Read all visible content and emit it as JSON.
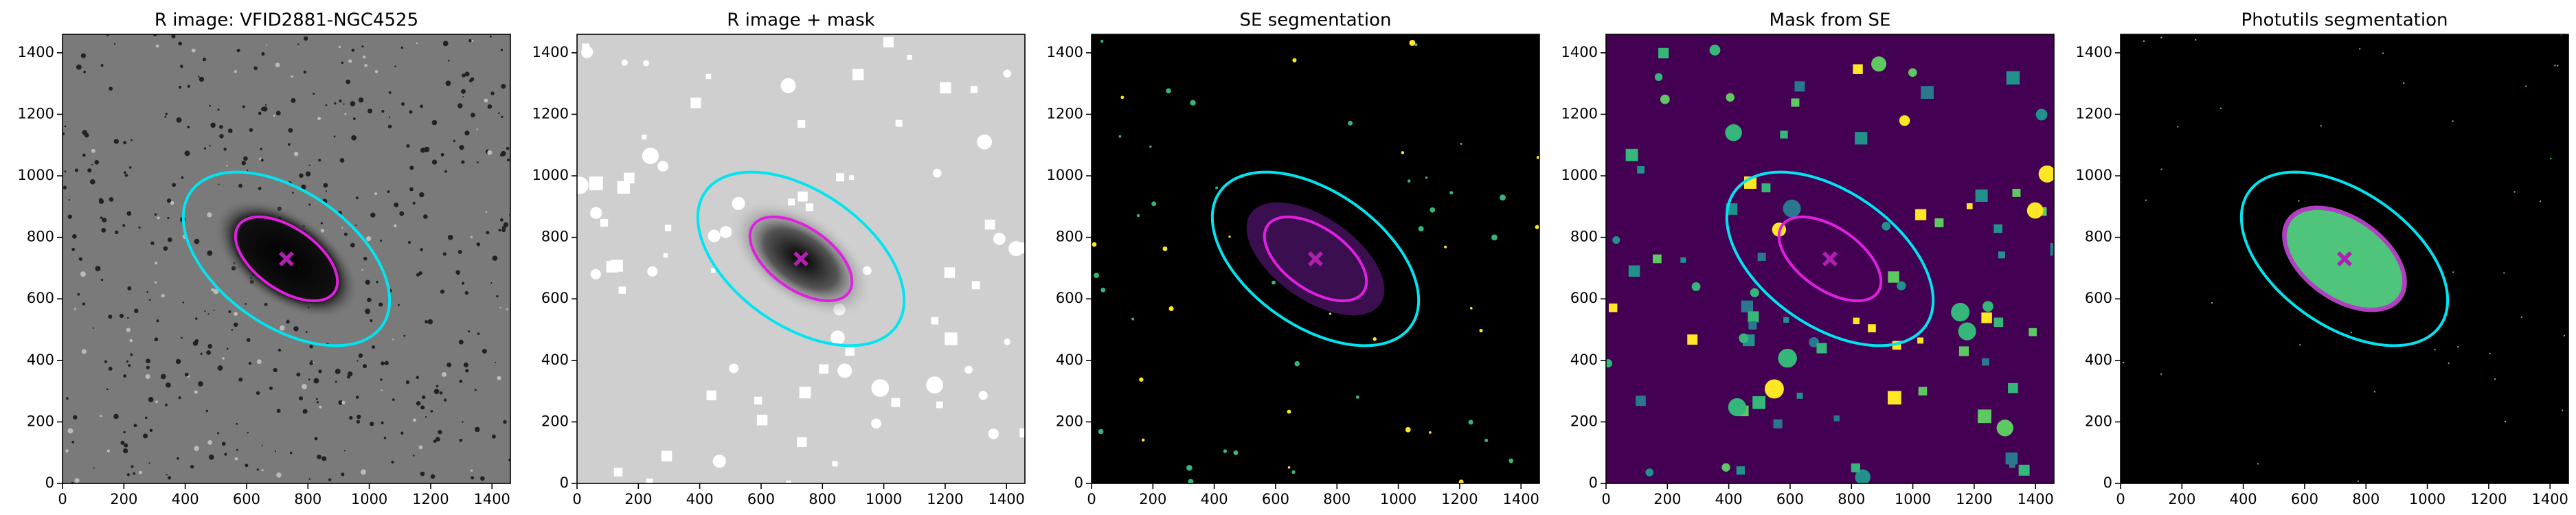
{
  "chart_data": [
    {
      "type": "image",
      "title": "R image: VFID2881-NGC4525",
      "xlim": [
        0,
        1460
      ],
      "ylim": [
        0,
        1460
      ],
      "xticks": [
        0,
        200,
        400,
        600,
        800,
        1000,
        1200,
        1400
      ],
      "yticks": [
        0,
        200,
        400,
        600,
        800,
        1000,
        1200,
        1400
      ]
    },
    {
      "type": "image",
      "title": "R image + mask",
      "xlim": [
        0,
        1460
      ],
      "ylim": [
        0,
        1460
      ],
      "xticks": [
        0,
        200,
        400,
        600,
        800,
        1000,
        1200,
        1400
      ],
      "yticks": [
        0,
        200,
        400,
        600,
        800,
        1000,
        1200,
        1400
      ]
    },
    {
      "type": "image",
      "title": "SE segmentation",
      "xlim": [
        0,
        1460
      ],
      "ylim": [
        0,
        1460
      ],
      "xticks": [
        0,
        200,
        400,
        600,
        800,
        1000,
        1200,
        1400
      ],
      "yticks": [
        0,
        200,
        400,
        600,
        800,
        1000,
        1200,
        1400
      ]
    },
    {
      "type": "image",
      "title": "Mask from SE",
      "xlim": [
        0,
        1460
      ],
      "ylim": [
        0,
        1460
      ],
      "xticks": [
        0,
        200,
        400,
        600,
        800,
        1000,
        1200,
        1400
      ],
      "yticks": [
        0,
        200,
        400,
        600,
        800,
        1000,
        1200,
        1400
      ]
    },
    {
      "type": "image",
      "title": "Photutils segmentation",
      "xlim": [
        0,
        1460
      ],
      "ylim": [
        0,
        1460
      ],
      "xticks": [
        0,
        200,
        400,
        600,
        800,
        1000,
        1200,
        1400
      ],
      "yticks": [
        0,
        200,
        400,
        600,
        800,
        1000,
        1200,
        1400
      ]
    }
  ]
}
